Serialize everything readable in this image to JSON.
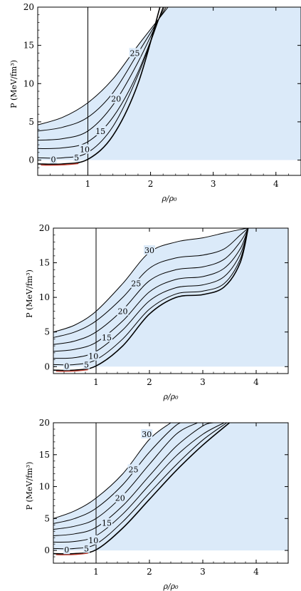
{
  "chart_data": [
    {
      "type": "line",
      "xlabel": "ρ/ρ₀",
      "ylabel": "P (MeV/fm³)",
      "xlim": [
        0.2,
        4.4
      ],
      "ylim": [
        -2,
        20
      ],
      "x_ticks": [
        "1",
        "2",
        "3",
        "4"
      ],
      "y_ticks": [
        "0",
        "5",
        "10",
        "15",
        "20"
      ],
      "vertical_line_x": 1,
      "shaded_region": {
        "x_from": 1,
        "y_from": 0,
        "color": "#dbeaf9"
      },
      "series": [
        {
          "name": "0",
          "color": "#000000",
          "x": [
            0.2,
            0.6,
            1.0,
            1.4,
            1.8,
            2.15
          ],
          "y": [
            -0.5,
            -0.5,
            0.1,
            3.2,
            10.0,
            20.0
          ]
        },
        {
          "name": "5",
          "color": "#000000",
          "x": [
            0.2,
            0.6,
            1.0,
            1.4,
            1.8,
            2.2
          ],
          "y": [
            0.3,
            0.3,
            1.0,
            4.4,
            11.1,
            20.0
          ]
        },
        {
          "name": "10",
          "color": "#000000",
          "x": [
            0.2,
            0.6,
            1.0,
            1.4,
            1.8,
            2.2
          ],
          "y": [
            1.5,
            1.6,
            2.4,
            5.6,
            11.5,
            20.0
          ]
        },
        {
          "name": "15",
          "color": "#000000",
          "x": [
            0.2,
            0.6,
            1.0,
            1.4,
            1.8,
            2.22
          ],
          "y": [
            2.6,
            2.8,
            3.8,
            7.2,
            12.8,
            20.0
          ]
        },
        {
          "name": "20",
          "color": "#000000",
          "x": [
            0.2,
            0.6,
            1.0,
            1.4,
            1.8,
            2.25
          ],
          "y": [
            3.8,
            4.3,
            5.6,
            8.8,
            14.0,
            20.0
          ]
        },
        {
          "name": "25",
          "color": "#000000",
          "x": [
            0.2,
            0.6,
            1.0,
            1.4,
            1.8,
            2.28
          ],
          "y": [
            4.6,
            5.6,
            7.5,
            10.6,
            15.0,
            20.0
          ]
        }
      ],
      "contour_labels": [
        {
          "text": "0",
          "x": 0.45,
          "y": 0.1
        },
        {
          "text": "5",
          "x": 0.82,
          "y": 0.35
        },
        {
          "text": "10",
          "x": 0.95,
          "y": 1.4
        },
        {
          "text": "15",
          "x": 1.2,
          "y": 3.8
        },
        {
          "text": "20",
          "x": 1.45,
          "y": 8.0
        },
        {
          "text": "25",
          "x": 1.75,
          "y": 14.0
        }
      ],
      "red_segment": {
        "x": [
          0.25,
          0.85
        ],
        "y": [
          -0.55,
          -0.55
        ],
        "color": "#c0392b"
      }
    },
    {
      "type": "line",
      "xlabel": "ρ/ρ₀",
      "ylabel": "P (MeV/fm³)",
      "xlim": [
        0.2,
        4.6
      ],
      "ylim": [
        -1,
        20
      ],
      "x_ticks": [
        "1",
        "2",
        "3",
        "4"
      ],
      "y_ticks": [
        "0",
        "5",
        "10",
        "15",
        "20"
      ],
      "vertical_line_x": 1,
      "shaded_region": {
        "x_from": 1,
        "y_from": 0,
        "color": "#dbeaf9"
      },
      "series": [
        {
          "name": "0",
          "color": "#000000",
          "x": [
            0.2,
            0.6,
            1.0,
            1.5,
            2.0,
            2.5,
            3.0,
            3.4,
            3.7,
            3.85
          ],
          "y": [
            -0.5,
            -0.5,
            0.1,
            3.0,
            7.6,
            10.0,
            10.4,
            11.5,
            15.0,
            20.0
          ]
        },
        {
          "name": "5",
          "color": "#000000",
          "x": [
            0.2,
            0.6,
            1.0,
            1.5,
            2.0,
            2.5,
            3.0,
            3.4,
            3.7,
            3.85
          ],
          "y": [
            0.3,
            0.3,
            1.0,
            4.0,
            8.3,
            10.5,
            10.9,
            12.0,
            15.5,
            20.0
          ]
        },
        {
          "name": "10",
          "color": "#000000",
          "x": [
            0.2,
            0.6,
            1.0,
            1.5,
            2.0,
            2.5,
            3.0,
            3.4,
            3.7,
            3.85
          ],
          "y": [
            1.2,
            1.3,
            2.2,
            5.3,
            9.5,
            11.4,
            11.8,
            13.0,
            16.2,
            20.0
          ]
        },
        {
          "name": "15",
          "color": "#000000",
          "x": [
            0.2,
            0.6,
            1.0,
            1.5,
            2.0,
            2.5,
            3.0,
            3.4,
            3.7,
            3.85
          ],
          "y": [
            2.2,
            2.5,
            3.5,
            6.6,
            10.8,
            12.6,
            13.0,
            14.2,
            17.0,
            20.0
          ]
        },
        {
          "name": "20",
          "color": "#000000",
          "x": [
            0.2,
            0.6,
            1.0,
            1.5,
            2.0,
            2.5,
            3.0,
            3.4,
            3.7,
            3.85
          ],
          "y": [
            3.2,
            3.7,
            5.0,
            8.2,
            12.4,
            14.0,
            14.4,
            15.5,
            18.0,
            20.0
          ]
        },
        {
          "name": "25",
          "color": "#000000",
          "x": [
            0.2,
            0.6,
            1.0,
            1.5,
            2.0,
            2.5,
            3.0,
            3.4,
            3.7,
            3.85
          ],
          "y": [
            4.2,
            5.0,
            6.6,
            10.0,
            14.2,
            15.7,
            16.1,
            17.0,
            19.0,
            20.0
          ]
        },
        {
          "name": "30",
          "color": "#000000",
          "x": [
            0.2,
            0.6,
            1.0,
            1.5,
            2.0,
            2.5,
            3.0,
            3.4,
            3.7,
            3.85
          ],
          "y": [
            5.0,
            6.0,
            8.0,
            12.0,
            16.5,
            18.0,
            18.6,
            19.3,
            19.8,
            20.0
          ]
        }
      ],
      "contour_labels": [
        {
          "text": "0",
          "x": 0.45,
          "y": 0.1
        },
        {
          "text": "5",
          "x": 0.82,
          "y": 0.3
        },
        {
          "text": "10",
          "x": 0.95,
          "y": 1.5
        },
        {
          "text": "15",
          "x": 1.2,
          "y": 4.2
        },
        {
          "text": "20",
          "x": 1.5,
          "y": 8.0
        },
        {
          "text": "25",
          "x": 1.75,
          "y": 12.0
        },
        {
          "text": "30",
          "x": 2.0,
          "y": 16.8
        }
      ],
      "red_segment": {
        "x": [
          0.25,
          0.85
        ],
        "y": [
          -0.55,
          -0.55
        ],
        "color": "#c0392b"
      }
    },
    {
      "type": "line",
      "xlabel": "ρ/ρ₀",
      "ylabel": "P (MeV/fm³)",
      "xlim": [
        0.2,
        4.6
      ],
      "ylim": [
        -2,
        20
      ],
      "x_ticks": [
        "1",
        "2",
        "3",
        "4"
      ],
      "y_ticks": [
        "0",
        "5",
        "10",
        "15",
        "20"
      ],
      "vertical_line_x": 1,
      "shaded_region": {
        "x_from": 1,
        "y_from": 0,
        "color": "#dbeaf9"
      },
      "series": [
        {
          "name": "0",
          "color": "#000000",
          "x": [
            0.2,
            0.6,
            1.0,
            1.5,
            2.0,
            2.5,
            3.0,
            3.5
          ],
          "y": [
            -0.5,
            -0.5,
            0.1,
            3.5,
            8.0,
            12.5,
            16.5,
            20.0
          ]
        },
        {
          "name": "5",
          "color": "#000000",
          "x": [
            0.2,
            0.6,
            1.0,
            1.5,
            2.0,
            2.5,
            3.0,
            3.45
          ],
          "y": [
            0.3,
            0.3,
            1.0,
            4.5,
            9.0,
            13.4,
            17.3,
            20.0
          ]
        },
        {
          "name": "10",
          "color": "#000000",
          "x": [
            0.2,
            0.6,
            1.0,
            1.5,
            2.0,
            2.5,
            3.0,
            3.4
          ],
          "y": [
            1.3,
            1.4,
            2.3,
            5.7,
            10.3,
            14.8,
            18.2,
            20.0
          ]
        },
        {
          "name": "15",
          "color": "#000000",
          "x": [
            0.2,
            0.6,
            1.0,
            1.5,
            2.0,
            2.5,
            3.0,
            3.2
          ],
          "y": [
            2.3,
            2.6,
            3.6,
            7.0,
            11.7,
            16.3,
            19.5,
            20.0
          ]
        },
        {
          "name": "20",
          "color": "#000000",
          "x": [
            0.2,
            0.6,
            1.0,
            1.5,
            2.0,
            2.5,
            2.9
          ],
          "y": [
            3.3,
            3.8,
            5.0,
            8.6,
            13.5,
            18.2,
            20.0
          ]
        },
        {
          "name": "25",
          "color": "#000000",
          "x": [
            0.2,
            0.6,
            1.0,
            1.5,
            2.0,
            2.5,
            2.7
          ],
          "y": [
            4.2,
            5.0,
            6.6,
            10.3,
            15.4,
            19.6,
            20.0
          ]
        },
        {
          "name": "30",
          "color": "#000000",
          "x": [
            0.2,
            0.6,
            1.0,
            1.5,
            2.0,
            2.4
          ],
          "y": [
            5.0,
            6.2,
            8.2,
            12.0,
            17.4,
            20.0
          ]
        }
      ],
      "contour_labels": [
        {
          "text": "0",
          "x": 0.45,
          "y": 0.1
        },
        {
          "text": "5",
          "x": 0.82,
          "y": 0.3
        },
        {
          "text": "10",
          "x": 0.95,
          "y": 1.6
        },
        {
          "text": "15",
          "x": 1.2,
          "y": 4.3
        },
        {
          "text": "20",
          "x": 1.45,
          "y": 8.2
        },
        {
          "text": "25",
          "x": 1.7,
          "y": 12.7
        },
        {
          "text": "30",
          "x": 1.95,
          "y": 18.2
        }
      ],
      "red_segment": {
        "x": [
          0.25,
          0.85
        ],
        "y": [
          -0.55,
          -0.55
        ],
        "color": "#c0392b"
      }
    }
  ]
}
